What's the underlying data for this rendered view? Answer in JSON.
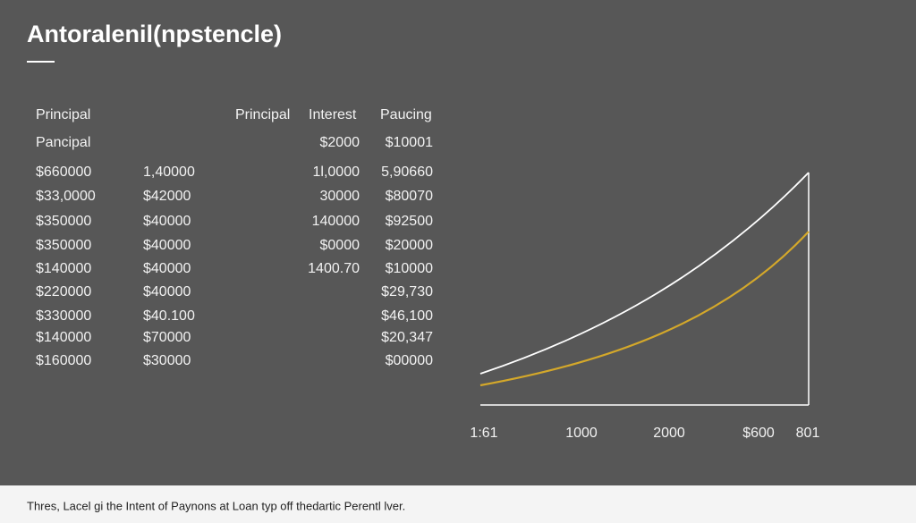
{
  "header": {
    "title": "Antoralenil(npstencle)"
  },
  "table": {
    "rows": [
      [
        "Principal",
        null,
        "Principal",
        "Interest",
        "Paucing"
      ],
      [
        "Pancipal",
        null,
        null,
        "$2000",
        "$10001"
      ],
      [
        "$660000",
        "1,40000",
        null,
        "1l,0000",
        "5,90660"
      ],
      [
        "$33,0000",
        "$42000",
        null,
        "30000",
        "$80070"
      ],
      [
        "$350000",
        "$40000",
        null,
        "140000",
        "$92500"
      ],
      [
        "$350000",
        "$40000",
        null,
        "$0000",
        "$20000"
      ],
      [
        "$140000",
        "$40000",
        null,
        "1400.70",
        "$10000"
      ],
      [
        "$220000",
        "$40000",
        null,
        null,
        "$29,730"
      ],
      [
        "$330000",
        "$40.100",
        null,
        null,
        "$46,100"
      ],
      [
        "$140000",
        "$70000",
        null,
        null,
        "$20,347"
      ],
      [
        "$160000",
        "$30000",
        null,
        null,
        "$00000"
      ]
    ]
  },
  "chart": {
    "x_labels": [
      "1:61",
      "1000",
      "2000",
      "$600",
      "801"
    ]
  },
  "footer": {
    "text": "Thres, Lacel gi the Intent of Paynons at Loan typ off thedartic Perentl lver."
  }
}
